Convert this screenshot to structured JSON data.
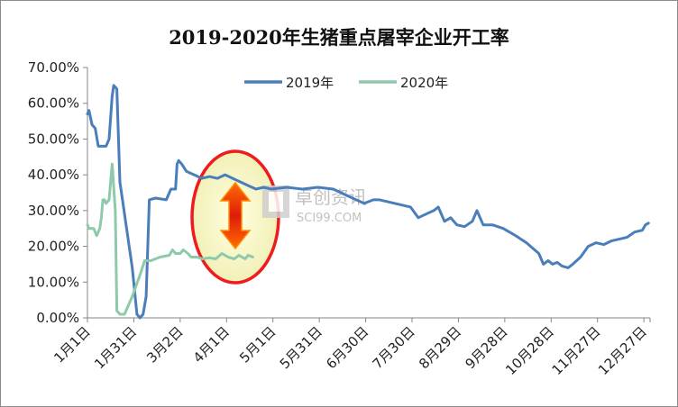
{
  "chart_data": {
    "type": "line",
    "title": "2019-2020年生猪重点屠宰企业开工率",
    "xlabel": "",
    "ylabel": "",
    "ylim": [
      0,
      70
    ],
    "y_ticks": [
      "0.00%",
      "10.00%",
      "20.00%",
      "30.00%",
      "40.00%",
      "50.00%",
      "60.00%",
      "70.00%"
    ],
    "x_ticks": [
      "1月1日",
      "1月31日",
      "3月2日",
      "4月1日",
      "5月1日",
      "5月31日",
      "6月30日",
      "7月30日",
      "8月29日",
      "9月28日",
      "10月28日",
      "11月27日",
      "12月27日"
    ],
    "grid": false,
    "legend": "top-right",
    "watermark": [
      "卓创资讯",
      "SCI99.COM"
    ],
    "series": [
      {
        "name": "2019年",
        "color": "#4a7ebb",
        "points": [
          [
            1,
            57
          ],
          [
            2,
            58
          ],
          [
            4,
            54
          ],
          [
            6,
            53
          ],
          [
            8,
            48
          ],
          [
            10,
            48
          ],
          [
            13,
            48
          ],
          [
            15,
            50
          ],
          [
            17,
            62
          ],
          [
            18,
            65
          ],
          [
            20,
            64
          ],
          [
            22,
            38
          ],
          [
            30,
            14
          ],
          [
            33,
            1
          ],
          [
            35,
            0
          ],
          [
            37,
            1
          ],
          [
            39,
            6
          ],
          [
            41,
            33
          ],
          [
            45,
            33.5
          ],
          [
            52,
            33
          ],
          [
            55,
            36
          ],
          [
            58,
            36
          ],
          [
            59,
            43
          ],
          [
            60,
            44
          ],
          [
            62,
            43
          ],
          [
            65,
            41
          ],
          [
            70,
            40
          ],
          [
            75,
            39
          ],
          [
            80,
            39.5
          ],
          [
            85,
            39
          ],
          [
            90,
            40
          ],
          [
            95,
            39
          ],
          [
            100,
            38
          ],
          [
            105,
            37
          ],
          [
            110,
            36
          ],
          [
            115,
            36.5
          ],
          [
            120,
            36
          ],
          [
            130,
            36.5
          ],
          [
            140,
            36
          ],
          [
            150,
            36.5
          ],
          [
            160,
            36
          ],
          [
            170,
            34
          ],
          [
            180,
            32
          ],
          [
            186,
            33
          ],
          [
            190,
            33
          ],
          [
            200,
            32
          ],
          [
            210,
            31
          ],
          [
            215,
            28
          ],
          [
            220,
            29
          ],
          [
            225,
            30
          ],
          [
            228,
            31
          ],
          [
            232,
            27
          ],
          [
            236,
            28
          ],
          [
            240,
            26
          ],
          [
            245,
            25.5
          ],
          [
            250,
            27
          ],
          [
            253,
            30
          ],
          [
            257,
            26
          ],
          [
            263,
            26
          ],
          [
            270,
            25
          ],
          [
            278,
            23
          ],
          [
            285,
            21
          ],
          [
            293,
            18
          ],
          [
            296,
            15
          ],
          [
            299,
            16
          ],
          [
            302,
            15
          ],
          [
            305,
            15.5
          ],
          [
            308,
            14.5
          ],
          [
            312,
            14
          ],
          [
            315,
            15
          ],
          [
            320,
            17
          ],
          [
            325,
            20
          ],
          [
            330,
            21
          ],
          [
            335,
            20.5
          ],
          [
            340,
            21.5
          ],
          [
            345,
            22
          ],
          [
            350,
            22.5
          ],
          [
            355,
            24
          ],
          [
            360,
            24.5
          ],
          [
            362,
            26
          ],
          [
            364,
            26.5
          ]
        ]
      },
      {
        "name": "2020年",
        "color": "#8ec9aa",
        "points": [
          [
            1,
            26
          ],
          [
            2,
            25
          ],
          [
            5,
            25
          ],
          [
            7,
            23
          ],
          [
            9,
            25
          ],
          [
            10,
            28
          ],
          [
            11,
            33
          ],
          [
            12,
            33
          ],
          [
            13,
            32
          ],
          [
            15,
            33
          ],
          [
            17,
            43
          ],
          [
            19,
            30
          ],
          [
            20,
            2
          ],
          [
            22,
            1
          ],
          [
            25,
            1
          ],
          [
            30,
            6
          ],
          [
            35,
            12
          ],
          [
            38,
            16
          ],
          [
            42,
            16
          ],
          [
            48,
            17
          ],
          [
            54,
            17.5
          ],
          [
            56,
            19
          ],
          [
            58,
            18
          ],
          [
            61,
            18
          ],
          [
            63,
            19
          ],
          [
            66,
            18
          ],
          [
            68,
            17
          ],
          [
            72,
            17
          ],
          [
            75,
            16.5
          ],
          [
            80,
            16.8
          ],
          [
            84,
            16.5
          ],
          [
            88,
            18
          ],
          [
            92,
            17
          ],
          [
            96,
            16.5
          ],
          [
            99,
            17.5
          ],
          [
            101,
            17
          ],
          [
            103,
            16.5
          ],
          [
            105,
            17.5
          ],
          [
            108,
            17
          ]
        ]
      }
    ]
  }
}
